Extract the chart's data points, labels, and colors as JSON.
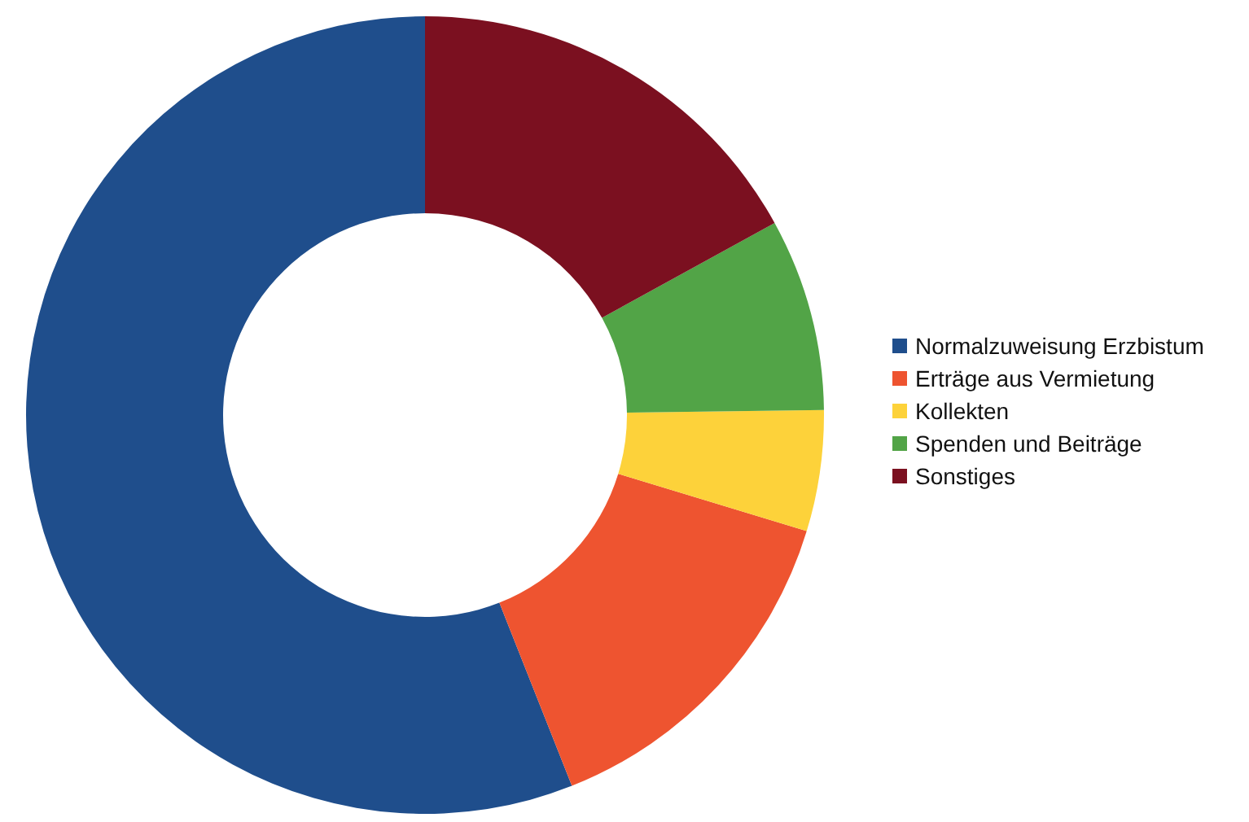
{
  "chart_data": {
    "type": "donut",
    "categories": [
      "Normalzuweisung Erzbistum",
      "Erträge aus Vermietung",
      "Kollekten",
      "Spenden und Beiträge",
      "Sonstiges"
    ],
    "values": [
      56,
      14.3,
      4.9,
      7.8,
      17
    ],
    "colors": [
      "#1f4e8c",
      "#ee5430",
      "#fdd23a",
      "#52a447",
      "#7b1020"
    ],
    "legend": "right"
  }
}
